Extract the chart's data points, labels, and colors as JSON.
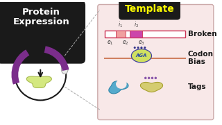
{
  "bg_color": "#ffffff",
  "left_box_color": "#1a1a1a",
  "left_box_text_color": "#ffffff",
  "template_box_color": "#1a1a1a",
  "template_box_fill": "#f8e8e8",
  "template_label": "Template",
  "template_label_color": "#ffff00",
  "broken_label": "Broken",
  "codon_label1": "Codon",
  "codon_label2": "Bias",
  "tags_label": "Tags",
  "label_color": "#1a1a1a",
  "circle_color": "#1a1a1a",
  "arc_color": "#7b2d8b",
  "arrow_color": "#1a1a1a",
  "mrna_line_color": "#cc3355",
  "exon_color": "#ffffff",
  "intron1_color": "#f0a0a0",
  "intron2_color": "#cc44aa",
  "ribosome_line_color": "#d08060",
  "ribosome_body_color": "#d0e060",
  "ribosome_border_color": "#4040a0",
  "small_dots_color": "#333388",
  "tag_blue_color": "#55aacc",
  "tag_yellow_color": "#d4cc70",
  "tag_purple_color": "#8855aa",
  "blob_color": "#d4e880",
  "blob_edge_color": "#a8bb50",
  "dashed_color": "#aaaaaa"
}
